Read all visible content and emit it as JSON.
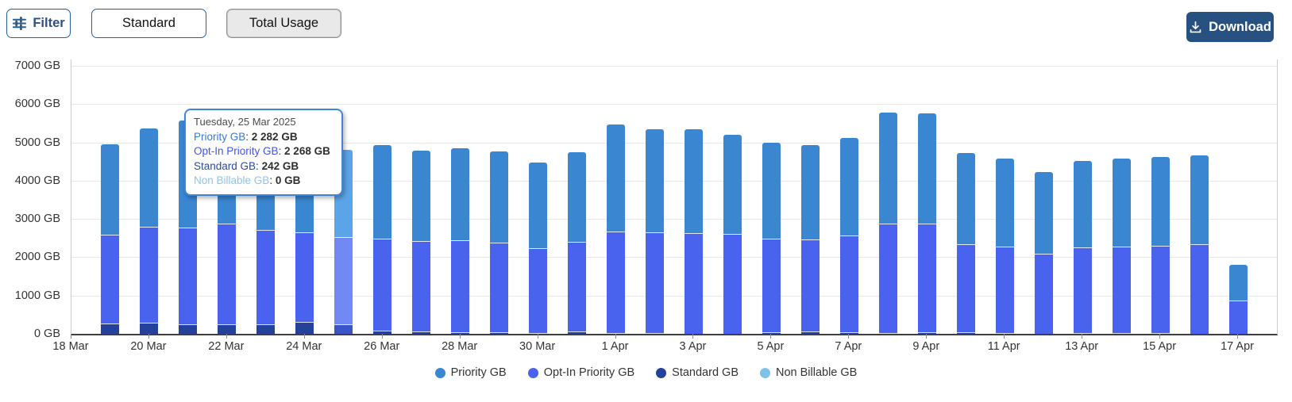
{
  "toolbar": {
    "filter_label": "Filter",
    "standard_label": "Standard",
    "total_usage_label": "Total Usage",
    "download_label": "Download"
  },
  "colors": {
    "priority": "#3b86d1",
    "opt_in": "#4a63ee",
    "standard": "#24419b",
    "non_billable": "#7ec2ea",
    "priority_hover": "#5ba4e8",
    "opt_in_hover": "#7289f4",
    "standard_hover": "#3a55c6",
    "download_bg": "#265181",
    "accent_border": "#2a5d9e"
  },
  "tooltip": {
    "date": "Tuesday, 25 Mar 2025",
    "rows": [
      {
        "label": "Priority GB",
        "value": "2 282 GB",
        "color": "#3579d8"
      },
      {
        "label": "Opt-In Priority GB",
        "value": "2 268 GB",
        "color": "#4255e8"
      },
      {
        "label": "Standard GB",
        "value": "242 GB",
        "color": "#2b4ba5"
      },
      {
        "label": "Non Billable GB",
        "value": "0 GB",
        "color": "#8ec6ea"
      }
    ]
  },
  "chart_data": {
    "type": "bar",
    "stacked": true,
    "title": "",
    "xlabel": "",
    "ylabel": "GB",
    "ylim": [
      0,
      7000
    ],
    "grid": true,
    "legend_position": "bottom",
    "y_tick_labels": [
      "0 GB",
      "1000 GB",
      "2000 GB",
      "3000 GB",
      "4000 GB",
      "5000 GB",
      "6000 GB",
      "7000 GB"
    ],
    "x_tick_labels": [
      "18 Mar",
      "20 Mar",
      "22 Mar",
      "24 Mar",
      "26 Mar",
      "28 Mar",
      "30 Mar",
      "1 Apr",
      "3 Apr",
      "5 Apr",
      "7 Apr",
      "9 Apr",
      "11 Apr",
      "13 Apr",
      "15 Apr",
      "17 Apr"
    ],
    "categories": [
      "19 Mar",
      "20 Mar",
      "21 Mar",
      "22 Mar",
      "23 Mar",
      "24 Mar",
      "25 Mar",
      "26 Mar",
      "27 Mar",
      "28 Mar",
      "29 Mar",
      "30 Mar",
      "31 Mar",
      "1 Apr",
      "2 Apr",
      "3 Apr",
      "4 Apr",
      "5 Apr",
      "6 Apr",
      "7 Apr",
      "8 Apr",
      "9 Apr",
      "10 Apr",
      "11 Apr",
      "12 Apr",
      "13 Apr",
      "14 Apr",
      "15 Apr",
      "16 Apr",
      "17 Apr"
    ],
    "series": [
      {
        "name": "Priority GB",
        "values": [
          2370,
          2570,
          2790,
          2700,
          2440,
          2410,
          2282,
          2440,
          2355,
          2395,
          2375,
          2235,
          2330,
          2805,
          2690,
          2705,
          2580,
          2515,
          2470,
          2550,
          2905,
          2870,
          2375,
          2305,
          2125,
          2250,
          2295,
          2325,
          2320,
          940
        ]
      },
      {
        "name": "Opt-In Priority GB",
        "values": [
          2310,
          2515,
          2530,
          2630,
          2460,
          2330,
          2268,
          2400,
          2360,
          2400,
          2335,
          2210,
          2345,
          2660,
          2630,
          2640,
          2605,
          2450,
          2405,
          2525,
          2860,
          2830,
          2300,
          2250,
          2090,
          2240,
          2255,
          2275,
          2340,
          880
        ]
      },
      {
        "name": "Standard GB",
        "values": [
          260,
          285,
          240,
          240,
          240,
          320,
          242,
          90,
          70,
          50,
          50,
          30,
          60,
          20,
          20,
          10,
          10,
          40,
          60,
          45,
          30,
          40,
          40,
          20,
          10,
          30,
          30,
          30,
          10,
          0
        ]
      },
      {
        "name": "Non Billable GB",
        "values": [
          0,
          0,
          0,
          0,
          0,
          0,
          0,
          0,
          0,
          0,
          0,
          0,
          0,
          0,
          0,
          0,
          0,
          0,
          0,
          0,
          0,
          0,
          0,
          0,
          0,
          0,
          0,
          0,
          0,
          0
        ]
      }
    ],
    "hovered_category": "25 Mar",
    "hovered_index": 6,
    "legend": [
      "Priority GB",
      "Opt-In Priority GB",
      "Standard GB",
      "Non Billable GB"
    ]
  }
}
